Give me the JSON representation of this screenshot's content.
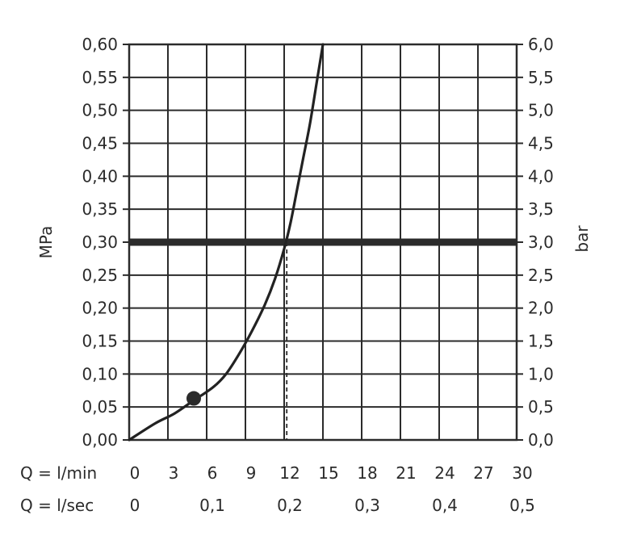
{
  "chart_data": {
    "type": "line",
    "title": "",
    "ylabel_left": "MPa",
    "ylabel_right": "bar",
    "x_row_labels": [
      "Q = l/min",
      "Q = l/sec"
    ],
    "xlim": [
      0,
      30
    ],
    "ylim": [
      0,
      0.6
    ],
    "grid": true,
    "x_ticks_lmin": [
      "0",
      "3",
      "6",
      "9",
      "12",
      "15",
      "18",
      "21",
      "24",
      "27",
      "30"
    ],
    "x_ticks_lsec": [
      {
        "label": "0",
        "at_lmin": 0
      },
      {
        "label": "0,1",
        "at_lmin": 6
      },
      {
        "label": "0,2",
        "at_lmin": 12
      },
      {
        "label": "0,3",
        "at_lmin": 18
      },
      {
        "label": "0,4",
        "at_lmin": 24
      },
      {
        "label": "0,5",
        "at_lmin": 30
      }
    ],
    "y_ticks_left": [
      "0,00",
      "0,05",
      "0,10",
      "0,15",
      "0,20",
      "0,25",
      "0,30",
      "0,35",
      "0,40",
      "0,45",
      "0,50",
      "0,55",
      "0,60"
    ],
    "y_ticks_right": [
      "0,0",
      "0,5",
      "1,0",
      "1,5",
      "2,0",
      "2,5",
      "3,0",
      "3,5",
      "4,0",
      "4,5",
      "5,0",
      "5,5",
      "6,0"
    ],
    "series": [
      {
        "x": [
          0,
          2,
          3.5,
          5,
          6.5,
          7.5,
          8.5,
          9.5,
          10.5,
          11.3,
          12,
          12.5,
          13,
          13.5,
          14,
          14.5,
          15
        ],
        "y": [
          0,
          0.025,
          0.04,
          0.06,
          0.08,
          0.1,
          0.13,
          0.165,
          0.205,
          0.245,
          0.29,
          0.33,
          0.38,
          0.43,
          0.48,
          0.54,
          0.6
        ]
      }
    ],
    "reference_line": {
      "y": 0.3
    },
    "operating_point": {
      "x": 12.2,
      "y": 0.3
    },
    "marker_point": {
      "x": 5,
      "y": 0.063
    }
  }
}
